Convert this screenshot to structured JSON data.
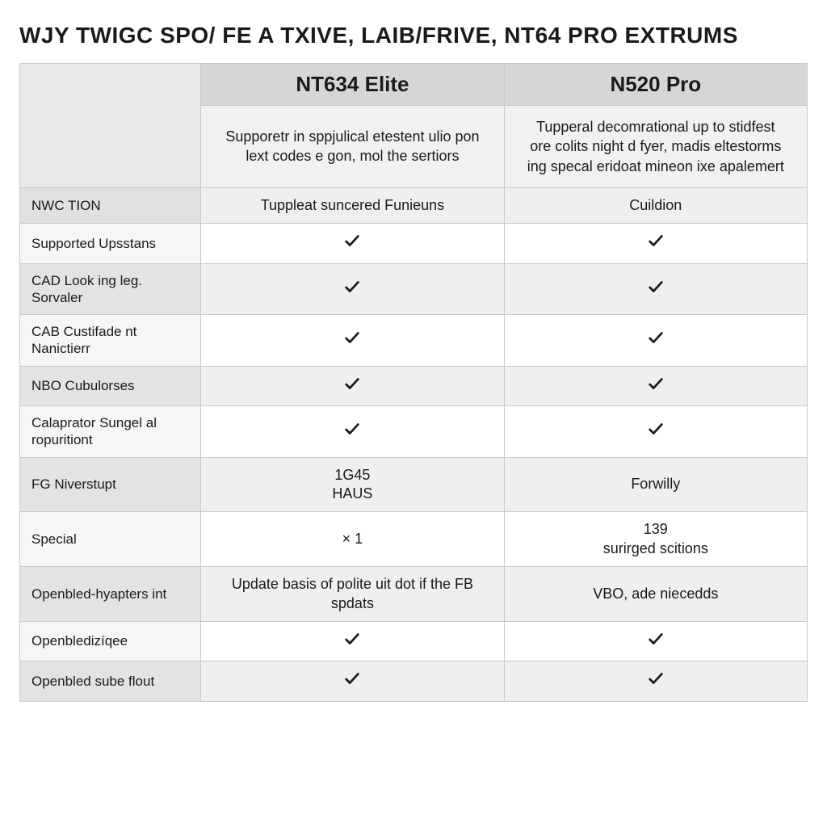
{
  "title": "WJY TWIGC SPO/ FE A TXIVE, LAIB/FRIVE, NT64 PRO EXTRUMS",
  "colors": {
    "header_bg": "#d6d6d6",
    "shade_bg": "#efefef",
    "label_shade_bg": "#e3e3e3",
    "plain_bg": "#ffffff",
    "border": "#c8c8c8",
    "text": "#1a1a1a"
  },
  "layout": {
    "col_widths_pct": [
      23,
      38.5,
      38.5
    ],
    "title_fontsize": 28,
    "product_name_fontsize": 26,
    "desc_fontsize": 18,
    "label_fontsize": 17,
    "value_fontsize": 18
  },
  "products": {
    "a": {
      "name": "NT634 Elite",
      "desc": "Supporetr in sppjulical etestent ulio pon lext codes e gon, mol the sertiors"
    },
    "b": {
      "name": "N520 Pro",
      "desc": "Tupperal decomrational up to stidfest ore colits night d fyer, madis eltestorms ing specal eridoat mineon ixe apalemert"
    }
  },
  "check_glyph": "✓",
  "rows": [
    {
      "label": "NWC TION",
      "a_type": "text",
      "a_text": "Tuppleat suncered Funieuns",
      "b_type": "text",
      "b_text": "Cuildion",
      "shade": true,
      "first": true
    },
    {
      "label": "Supported Upsstans",
      "a_type": "check",
      "b_type": "check",
      "shade": false
    },
    {
      "label": "CAD Look ing leg. Sorvaler",
      "a_type": "check",
      "b_type": "check",
      "shade": true
    },
    {
      "label": "CAB Custifade nt Nanictierr",
      "a_type": "check",
      "b_type": "check",
      "shade": false
    },
    {
      "label": "NBO Cubulorses",
      "a_type": "check",
      "b_type": "check",
      "shade": true
    },
    {
      "label": "Calaprator Sungel al ropuritiont",
      "a_type": "check",
      "b_type": "check",
      "shade": false
    },
    {
      "label": "FG Niverstupt",
      "a_type": "text",
      "a_text": "1G45\nHAUS",
      "b_type": "text",
      "b_text": "Forwilly",
      "shade": true
    },
    {
      "label": "Special",
      "a_type": "text",
      "a_text": "× 1",
      "b_type": "text",
      "b_text": "139\nsurirged scitions",
      "shade": false
    },
    {
      "label": "Openbled-hyapters int",
      "a_type": "text",
      "a_text": "Update basis of polite uit dot if the FB spdats",
      "b_type": "text",
      "b_text": "VBO, ade niecedds",
      "shade": true
    },
    {
      "label": "Openbledizíqee",
      "a_type": "check",
      "b_type": "check",
      "shade": false
    },
    {
      "label": "Openbled sube flout",
      "a_type": "check",
      "b_type": "check",
      "shade": true
    }
  ]
}
